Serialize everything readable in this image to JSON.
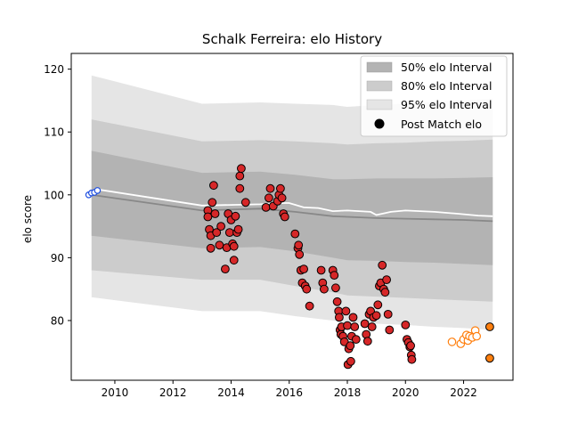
{
  "colors": {
    "band50": "#b3b3b3",
    "band80": "#cccccc",
    "band95": "#e5e5e5",
    "median_line": "#888888",
    "post_match_line": "#ffffff",
    "red_marker": "#d62728",
    "blue_marker": "#1f4fe0",
    "orange_marker": "#ff7f0e"
  },
  "chart_data": {
    "type": "scatter",
    "title": "Schalk Ferreira: elo History",
    "xlabel": "",
    "ylabel": "elo score",
    "xlim": [
      2008.5,
      2023.7
    ],
    "ylim": [
      70.5,
      122.5
    ],
    "xticks": [
      2010,
      2012,
      2014,
      2016,
      2018,
      2020,
      2022
    ],
    "yticks": [
      80,
      90,
      100,
      110,
      120
    ],
    "grid": false,
    "legend": {
      "position": "top-right",
      "entries": [
        "50% elo Interval",
        "80% elo Interval",
        "95% elo Interval",
        "Post Match elo"
      ]
    },
    "bands": {
      "x": [
        2009.2,
        2013.0,
        2015.0,
        2016.2,
        2017.5,
        2018.0,
        2019.0,
        2020.0,
        2021.0,
        2022.0,
        2023.0
      ],
      "median": [
        100.0,
        97.5,
        97.8,
        97.3,
        96.6,
        96.5,
        96.3,
        96.2,
        96.1,
        96.0,
        95.8
      ],
      "p50": {
        "lower": [
          93.5,
          91.5,
          91.7,
          91.0,
          90.0,
          89.6,
          89.5,
          89.3,
          89.2,
          89.0,
          88.8
        ],
        "upper": [
          107.0,
          103.5,
          103.7,
          103.2,
          102.5,
          102.5,
          102.6,
          102.6,
          102.6,
          102.7,
          102.8
        ]
      },
      "p80": {
        "lower": [
          88.0,
          86.5,
          86.5,
          85.5,
          84.5,
          84.0,
          83.8,
          83.6,
          83.4,
          83.2,
          83.0
        ],
        "upper": [
          112.0,
          108.5,
          108.7,
          108.5,
          108.2,
          108.0,
          108.2,
          108.3,
          108.5,
          108.6,
          108.8
        ]
      },
      "p95": {
        "lower": [
          83.7,
          81.5,
          81.5,
          80.7,
          80.0,
          79.7,
          79.5,
          79.3,
          79.0,
          78.8,
          78.5
        ],
        "upper": [
          119.0,
          114.5,
          114.7,
          114.5,
          114.3,
          114.0,
          114.3,
          114.5,
          114.8,
          115.0,
          115.3
        ]
      }
    },
    "post_match_line": {
      "x": [
        2009.2,
        2009.5,
        2013.0,
        2014.0,
        2015.0,
        2015.8,
        2016.0,
        2016.5,
        2017.0,
        2017.5,
        2018.0,
        2018.8,
        2019.0,
        2019.2,
        2019.5,
        2020.0,
        2021.0,
        2021.8,
        2022.5,
        2023.0
      ],
      "y": [
        100.2,
        100.8,
        98.3,
        98.4,
        98.5,
        98.7,
        98.7,
        98.0,
        97.9,
        97.4,
        97.5,
        97.3,
        96.8,
        97.0,
        97.3,
        97.5,
        97.3,
        97.0,
        96.7,
        96.6
      ]
    },
    "series": [
      {
        "name": "red-matches",
        "marker": "filled-red",
        "points": [
          [
            2013.2,
            97.5
          ],
          [
            2013.2,
            96.5
          ],
          [
            2013.25,
            94.5
          ],
          [
            2013.3,
            91.5
          ],
          [
            2013.3,
            93.5
          ],
          [
            2013.35,
            98.8
          ],
          [
            2013.4,
            101.5
          ],
          [
            2013.45,
            97.0
          ],
          [
            2013.5,
            94.0
          ],
          [
            2013.6,
            92.0
          ],
          [
            2013.65,
            95.0
          ],
          [
            2013.8,
            88.2
          ],
          [
            2013.85,
            91.6
          ],
          [
            2013.9,
            97.0
          ],
          [
            2013.95,
            94.0
          ],
          [
            2014.0,
            96.0
          ],
          [
            2014.05,
            92.2
          ],
          [
            2014.1,
            89.6
          ],
          [
            2014.1,
            91.8
          ],
          [
            2014.15,
            96.6
          ],
          [
            2014.2,
            94.0
          ],
          [
            2014.25,
            94.5
          ],
          [
            2014.3,
            101.0
          ],
          [
            2014.3,
            103.0
          ],
          [
            2014.35,
            104.2
          ],
          [
            2014.5,
            98.8
          ],
          [
            2015.2,
            98.0
          ],
          [
            2015.3,
            99.5
          ],
          [
            2015.35,
            101.0
          ],
          [
            2015.45,
            98.2
          ],
          [
            2015.6,
            99.0
          ],
          [
            2015.65,
            100.0
          ],
          [
            2015.7,
            101.0
          ],
          [
            2015.75,
            99.5
          ],
          [
            2015.8,
            97.0
          ],
          [
            2015.85,
            96.5
          ],
          [
            2016.2,
            93.8
          ],
          [
            2016.3,
            91.5
          ],
          [
            2016.32,
            92.0
          ],
          [
            2016.35,
            90.5
          ],
          [
            2016.4,
            88.0
          ],
          [
            2016.45,
            86.0
          ],
          [
            2016.5,
            88.2
          ],
          [
            2016.55,
            85.5
          ],
          [
            2016.6,
            85.0
          ],
          [
            2016.7,
            82.3
          ],
          [
            2017.1,
            88.0
          ],
          [
            2017.15,
            86.0
          ],
          [
            2017.2,
            85.0
          ],
          [
            2017.5,
            88.0
          ],
          [
            2017.55,
            87.2
          ],
          [
            2017.6,
            85.2
          ],
          [
            2017.65,
            83.0
          ],
          [
            2017.7,
            81.5
          ],
          [
            2017.72,
            80.5
          ],
          [
            2017.75,
            78.5
          ],
          [
            2017.78,
            77.8
          ],
          [
            2017.8,
            79.0
          ],
          [
            2017.85,
            77.5
          ],
          [
            2017.9,
            76.6
          ],
          [
            2017.95,
            81.5
          ],
          [
            2018.0,
            79.2
          ],
          [
            2018.02,
            73.0
          ],
          [
            2018.05,
            75.5
          ],
          [
            2018.1,
            76.0
          ],
          [
            2018.12,
            73.5
          ],
          [
            2018.15,
            77.5
          ],
          [
            2018.2,
            80.5
          ],
          [
            2018.25,
            79.0
          ],
          [
            2018.3,
            77.0
          ],
          [
            2018.6,
            79.5
          ],
          [
            2018.65,
            77.8
          ],
          [
            2018.7,
            76.7
          ],
          [
            2018.75,
            81.0
          ],
          [
            2018.8,
            81.5
          ],
          [
            2018.85,
            79.0
          ],
          [
            2018.9,
            80.5
          ],
          [
            2019.0,
            80.8
          ],
          [
            2019.05,
            82.5
          ],
          [
            2019.1,
            85.5
          ],
          [
            2019.15,
            86.0
          ],
          [
            2019.2,
            88.8
          ],
          [
            2019.25,
            85.0
          ],
          [
            2019.3,
            84.5
          ],
          [
            2019.35,
            86.5
          ],
          [
            2019.4,
            81.0
          ],
          [
            2019.45,
            78.5
          ],
          [
            2020.0,
            79.3
          ],
          [
            2020.05,
            77.0
          ],
          [
            2020.1,
            76.5
          ],
          [
            2020.15,
            75.8
          ],
          [
            2020.18,
            76.0
          ],
          [
            2020.2,
            74.5
          ],
          [
            2020.22,
            73.8
          ]
        ]
      },
      {
        "name": "blue-matches",
        "marker": "open-blue",
        "points": [
          [
            2009.1,
            100.0
          ],
          [
            2009.2,
            100.3
          ],
          [
            2009.3,
            100.4
          ],
          [
            2009.4,
            100.7
          ]
        ]
      },
      {
        "name": "orange-open-matches",
        "marker": "open-orange",
        "points": [
          [
            2021.6,
            76.6
          ],
          [
            2021.9,
            76.3
          ],
          [
            2022.0,
            77.0
          ],
          [
            2022.1,
            77.7
          ],
          [
            2022.15,
            76.8
          ],
          [
            2022.2,
            77.5
          ],
          [
            2022.3,
            77.3
          ],
          [
            2022.4,
            78.4
          ],
          [
            2022.45,
            77.5
          ]
        ]
      },
      {
        "name": "orange-filled-matches",
        "marker": "filled-orange",
        "points": [
          [
            2022.9,
            79.0
          ],
          [
            2022.9,
            74.0
          ]
        ]
      }
    ]
  }
}
